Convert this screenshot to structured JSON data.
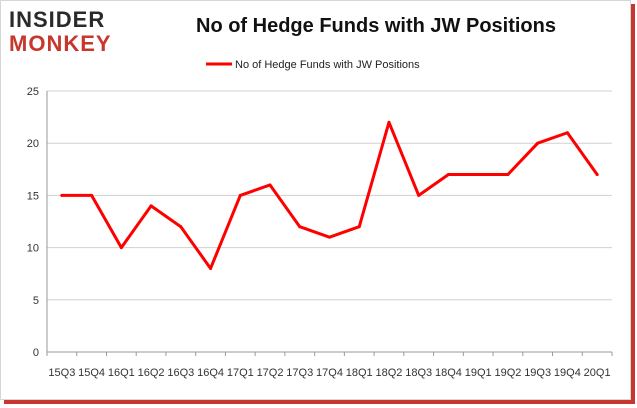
{
  "logo": {
    "line1": "INSIDER",
    "line2": "MONKEY"
  },
  "chart_data": {
    "type": "line",
    "title": "No of Hedge Funds with JW Positions",
    "xlabel": "",
    "ylabel": "",
    "ylim": [
      0,
      25
    ],
    "yticks": [
      0,
      5,
      10,
      15,
      20,
      25
    ],
    "grid": true,
    "legend": "top-center",
    "categories": [
      "15Q3",
      "15Q4",
      "16Q1",
      "16Q2",
      "16Q3",
      "16Q4",
      "17Q1",
      "17Q2",
      "17Q3",
      "17Q4",
      "18Q1",
      "18Q2",
      "18Q3",
      "18Q4",
      "19Q1",
      "19Q2",
      "19Q3",
      "19Q4",
      "20Q1"
    ],
    "series": [
      {
        "name": "No of Hedge Funds with JW Positions",
        "color": "#ff0000",
        "values": [
          15,
          15,
          10,
          14,
          12,
          8,
          15,
          16,
          12,
          11,
          12,
          22,
          15,
          17,
          17,
          17,
          20,
          21,
          17
        ]
      }
    ]
  }
}
